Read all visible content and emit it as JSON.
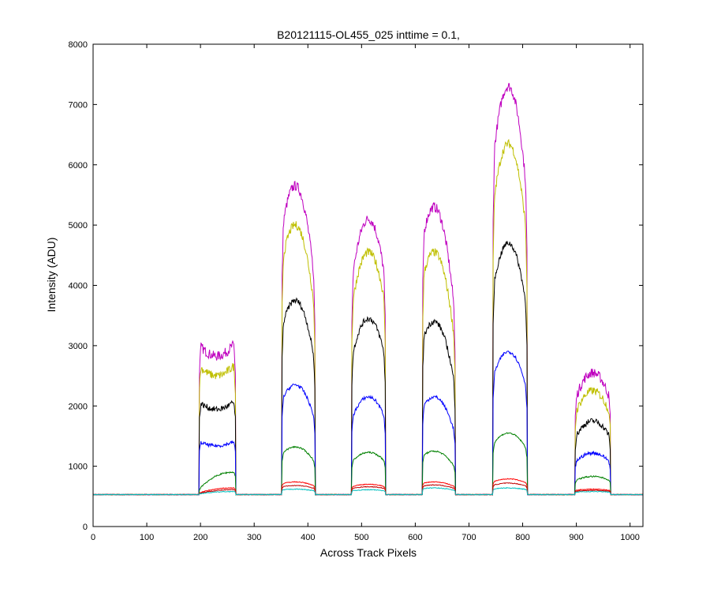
{
  "chart_data": {
    "type": "line",
    "title": "B20121115-OL455_025 inttime = 0.1,",
    "xlabel": "Across Track Pixels",
    "ylabel": "Intensity (ADU)",
    "xlim": [
      0,
      1024
    ],
    "ylim": [
      0,
      8000
    ],
    "xticks": [
      0,
      100,
      200,
      300,
      400,
      500,
      600,
      700,
      800,
      900,
      1000
    ],
    "yticks": [
      0,
      1000,
      2000,
      3000,
      4000,
      5000,
      6000,
      7000,
      8000
    ],
    "grid": false,
    "legend": "none",
    "baseline": 530,
    "segments": [
      {
        "x_start": 198,
        "x_end": 265
      },
      {
        "x_start": 352,
        "x_end": 413
      },
      {
        "x_start": 482,
        "x_end": 544
      },
      {
        "x_start": 614,
        "x_end": 674
      },
      {
        "x_start": 745,
        "x_end": 808
      },
      {
        "x_start": 898,
        "x_end": 963
      }
    ],
    "series": [
      {
        "color": "#bf00bf",
        "peaks": [
          3000,
          5650,
          5100,
          5300,
          7300,
          2550
        ],
        "peak_pos": [
          0.9,
          0.4,
          0.5,
          0.35,
          0.45,
          0.5
        ],
        "dip": true
      },
      {
        "color": "#bfbf00",
        "peaks": [
          2650,
          5000,
          4550,
          4550,
          6350,
          2250
        ],
        "peak_pos": [
          0.9,
          0.4,
          0.5,
          0.35,
          0.45,
          0.5
        ],
        "dip": true
      },
      {
        "color": "#000000",
        "peaks": [
          2050,
          3750,
          3450,
          3400,
          4700,
          1750
        ],
        "peak_pos": [
          0.9,
          0.4,
          0.5,
          0.35,
          0.45,
          0.5
        ],
        "dip": true
      },
      {
        "color": "#0000ff",
        "peaks": [
          1400,
          2350,
          2150,
          2150,
          2900,
          1220
        ],
        "peak_pos": [
          0.9,
          0.4,
          0.5,
          0.35,
          0.45,
          0.5
        ],
        "dip": true
      },
      {
        "color": "#008000",
        "peaks": [
          900,
          1320,
          1230,
          1250,
          1550,
          830
        ],
        "peak_pos": [
          0.9,
          0.4,
          0.5,
          0.35,
          0.45,
          0.5
        ],
        "dip": false
      },
      {
        "color": "#ff0000",
        "peaks": [
          640,
          740,
          700,
          740,
          790,
          620
        ],
        "peak_pos": [
          0.9,
          0.4,
          0.5,
          0.35,
          0.45,
          0.5
        ],
        "dip": false
      },
      {
        "color": "#bf0000",
        "peaks": [
          610,
          680,
          660,
          690,
          720,
          600
        ],
        "peak_pos": [
          0.9,
          0.4,
          0.5,
          0.35,
          0.45,
          0.5
        ],
        "dip": false
      },
      {
        "color": "#00bfbf",
        "peaks": [
          580,
          620,
          610,
          640,
          640,
          580
        ],
        "peak_pos": [
          0.9,
          0.4,
          0.5,
          0.35,
          0.45,
          0.5
        ],
        "dip": false
      }
    ]
  }
}
